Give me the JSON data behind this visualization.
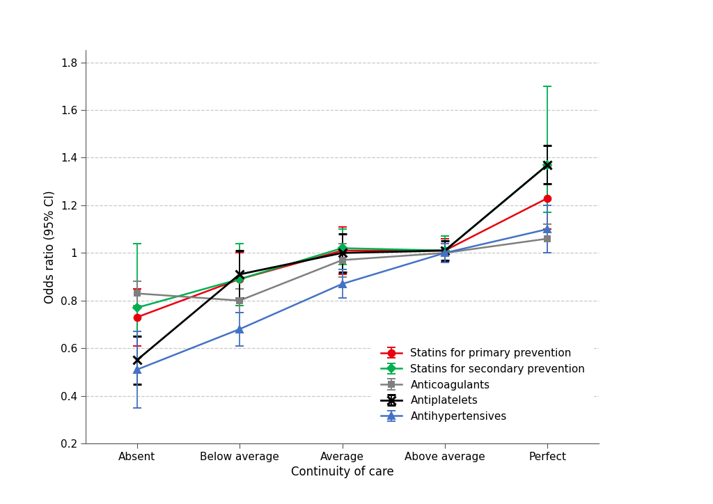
{
  "categories": [
    "Absent",
    "Below average",
    "Average",
    "Above average",
    "Perfect"
  ],
  "x_positions": [
    0,
    1,
    2,
    3,
    4
  ],
  "series": [
    {
      "name": "Statins for primary prevention",
      "color": "#e8000d",
      "marker": "o",
      "markersize": 7,
      "linewidth": 1.8,
      "y": [
        0.73,
        0.89,
        1.01,
        1.01,
        1.23
      ],
      "yerr_lo": [
        0.12,
        0.11,
        0.1,
        0.05,
        0.13
      ],
      "yerr_hi": [
        0.12,
        0.11,
        0.1,
        0.05,
        0.13
      ]
    },
    {
      "name": "Statins for secondary prevention",
      "color": "#00b050",
      "marker": "D",
      "markersize": 6,
      "linewidth": 1.8,
      "y": [
        0.77,
        0.89,
        1.02,
        1.01,
        1.37
      ],
      "yerr_lo": [
        0.12,
        0.11,
        0.07,
        0.05,
        0.2
      ],
      "yerr_hi": [
        0.27,
        0.15,
        0.08,
        0.06,
        0.33
      ]
    },
    {
      "name": "Anticoagulants",
      "color": "#7f7f7f",
      "marker": "s",
      "markersize": 6,
      "linewidth": 1.8,
      "y": [
        0.83,
        0.8,
        0.97,
        1.0,
        1.06
      ],
      "yerr_lo": [
        0.05,
        0.05,
        0.07,
        0.04,
        0.06
      ],
      "yerr_hi": [
        0.05,
        0.05,
        0.07,
        0.04,
        0.06
      ]
    },
    {
      "name": "Antiplatelets",
      "color": "#000000",
      "marker": "x",
      "markersize": 9,
      "linewidth": 2.0,
      "y": [
        0.55,
        0.91,
        1.0,
        1.01,
        1.37
      ],
      "yerr_lo": [
        0.1,
        0.1,
        0.08,
        0.04,
        0.08
      ],
      "yerr_hi": [
        0.1,
        0.1,
        0.08,
        0.04,
        0.08
      ]
    },
    {
      "name": "Antihypertensives",
      "color": "#4472c4",
      "marker": "^",
      "markersize": 7,
      "linewidth": 1.8,
      "y": [
        0.51,
        0.68,
        0.87,
        1.0,
        1.1
      ],
      "yerr_lo": [
        0.16,
        0.07,
        0.06,
        0.04,
        0.1
      ],
      "yerr_hi": [
        0.16,
        0.07,
        0.06,
        0.04,
        0.1
      ]
    }
  ],
  "ylabel": "Odds ratio (95% CI)",
  "xlabel": "Continuity of care",
  "ylim": [
    0.2,
    1.85
  ],
  "yticks": [
    0.2,
    0.4,
    0.6,
    0.8,
    1.0,
    1.2,
    1.4,
    1.6,
    1.8
  ],
  "background_color": "#ffffff",
  "grid_color": "#c8c8c8",
  "axis_fontsize": 12,
  "tick_fontsize": 11,
  "legend_fontsize": 11
}
